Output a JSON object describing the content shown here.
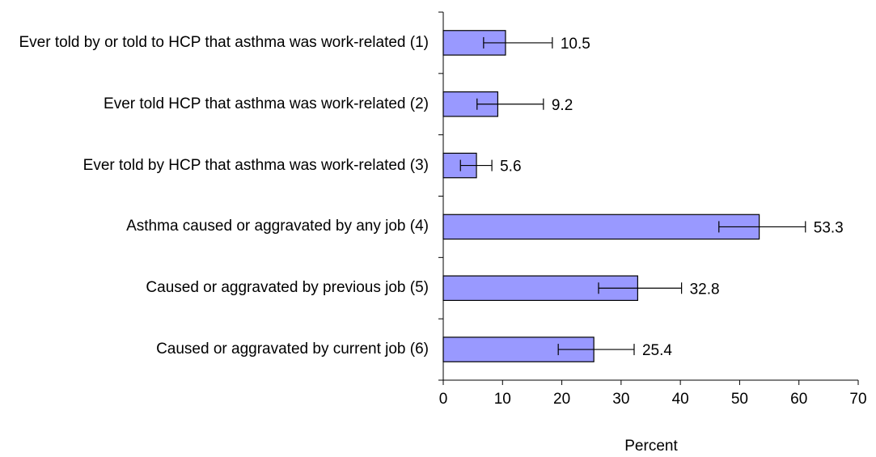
{
  "chart_data": {
    "type": "bar",
    "orientation": "horizontal",
    "categories": [
      "Ever told by or told to HCP that asthma was work-related (1)",
      "Ever told HCP that asthma was work-related (2)",
      "Ever told by HCP that asthma was work-related (3)",
      "Asthma caused or aggravated by any job (4)",
      "Caused or aggravated by previous job (5)",
      "Caused or aggravated by current job (6)"
    ],
    "values": [
      10.5,
      9.2,
      5.6,
      53.3,
      32.8,
      25.4
    ],
    "error_low": [
      6.8,
      5.7,
      2.9,
      46.5,
      26.2,
      19.4
    ],
    "error_high": [
      18.4,
      16.9,
      8.2,
      61.1,
      40.2,
      32.2
    ],
    "color": "#9999ff",
    "xlabel": "Percent",
    "xlim": [
      0,
      70
    ],
    "xticks": [
      0,
      10,
      20,
      30,
      40,
      50,
      60,
      70
    ],
    "grid": false
  }
}
